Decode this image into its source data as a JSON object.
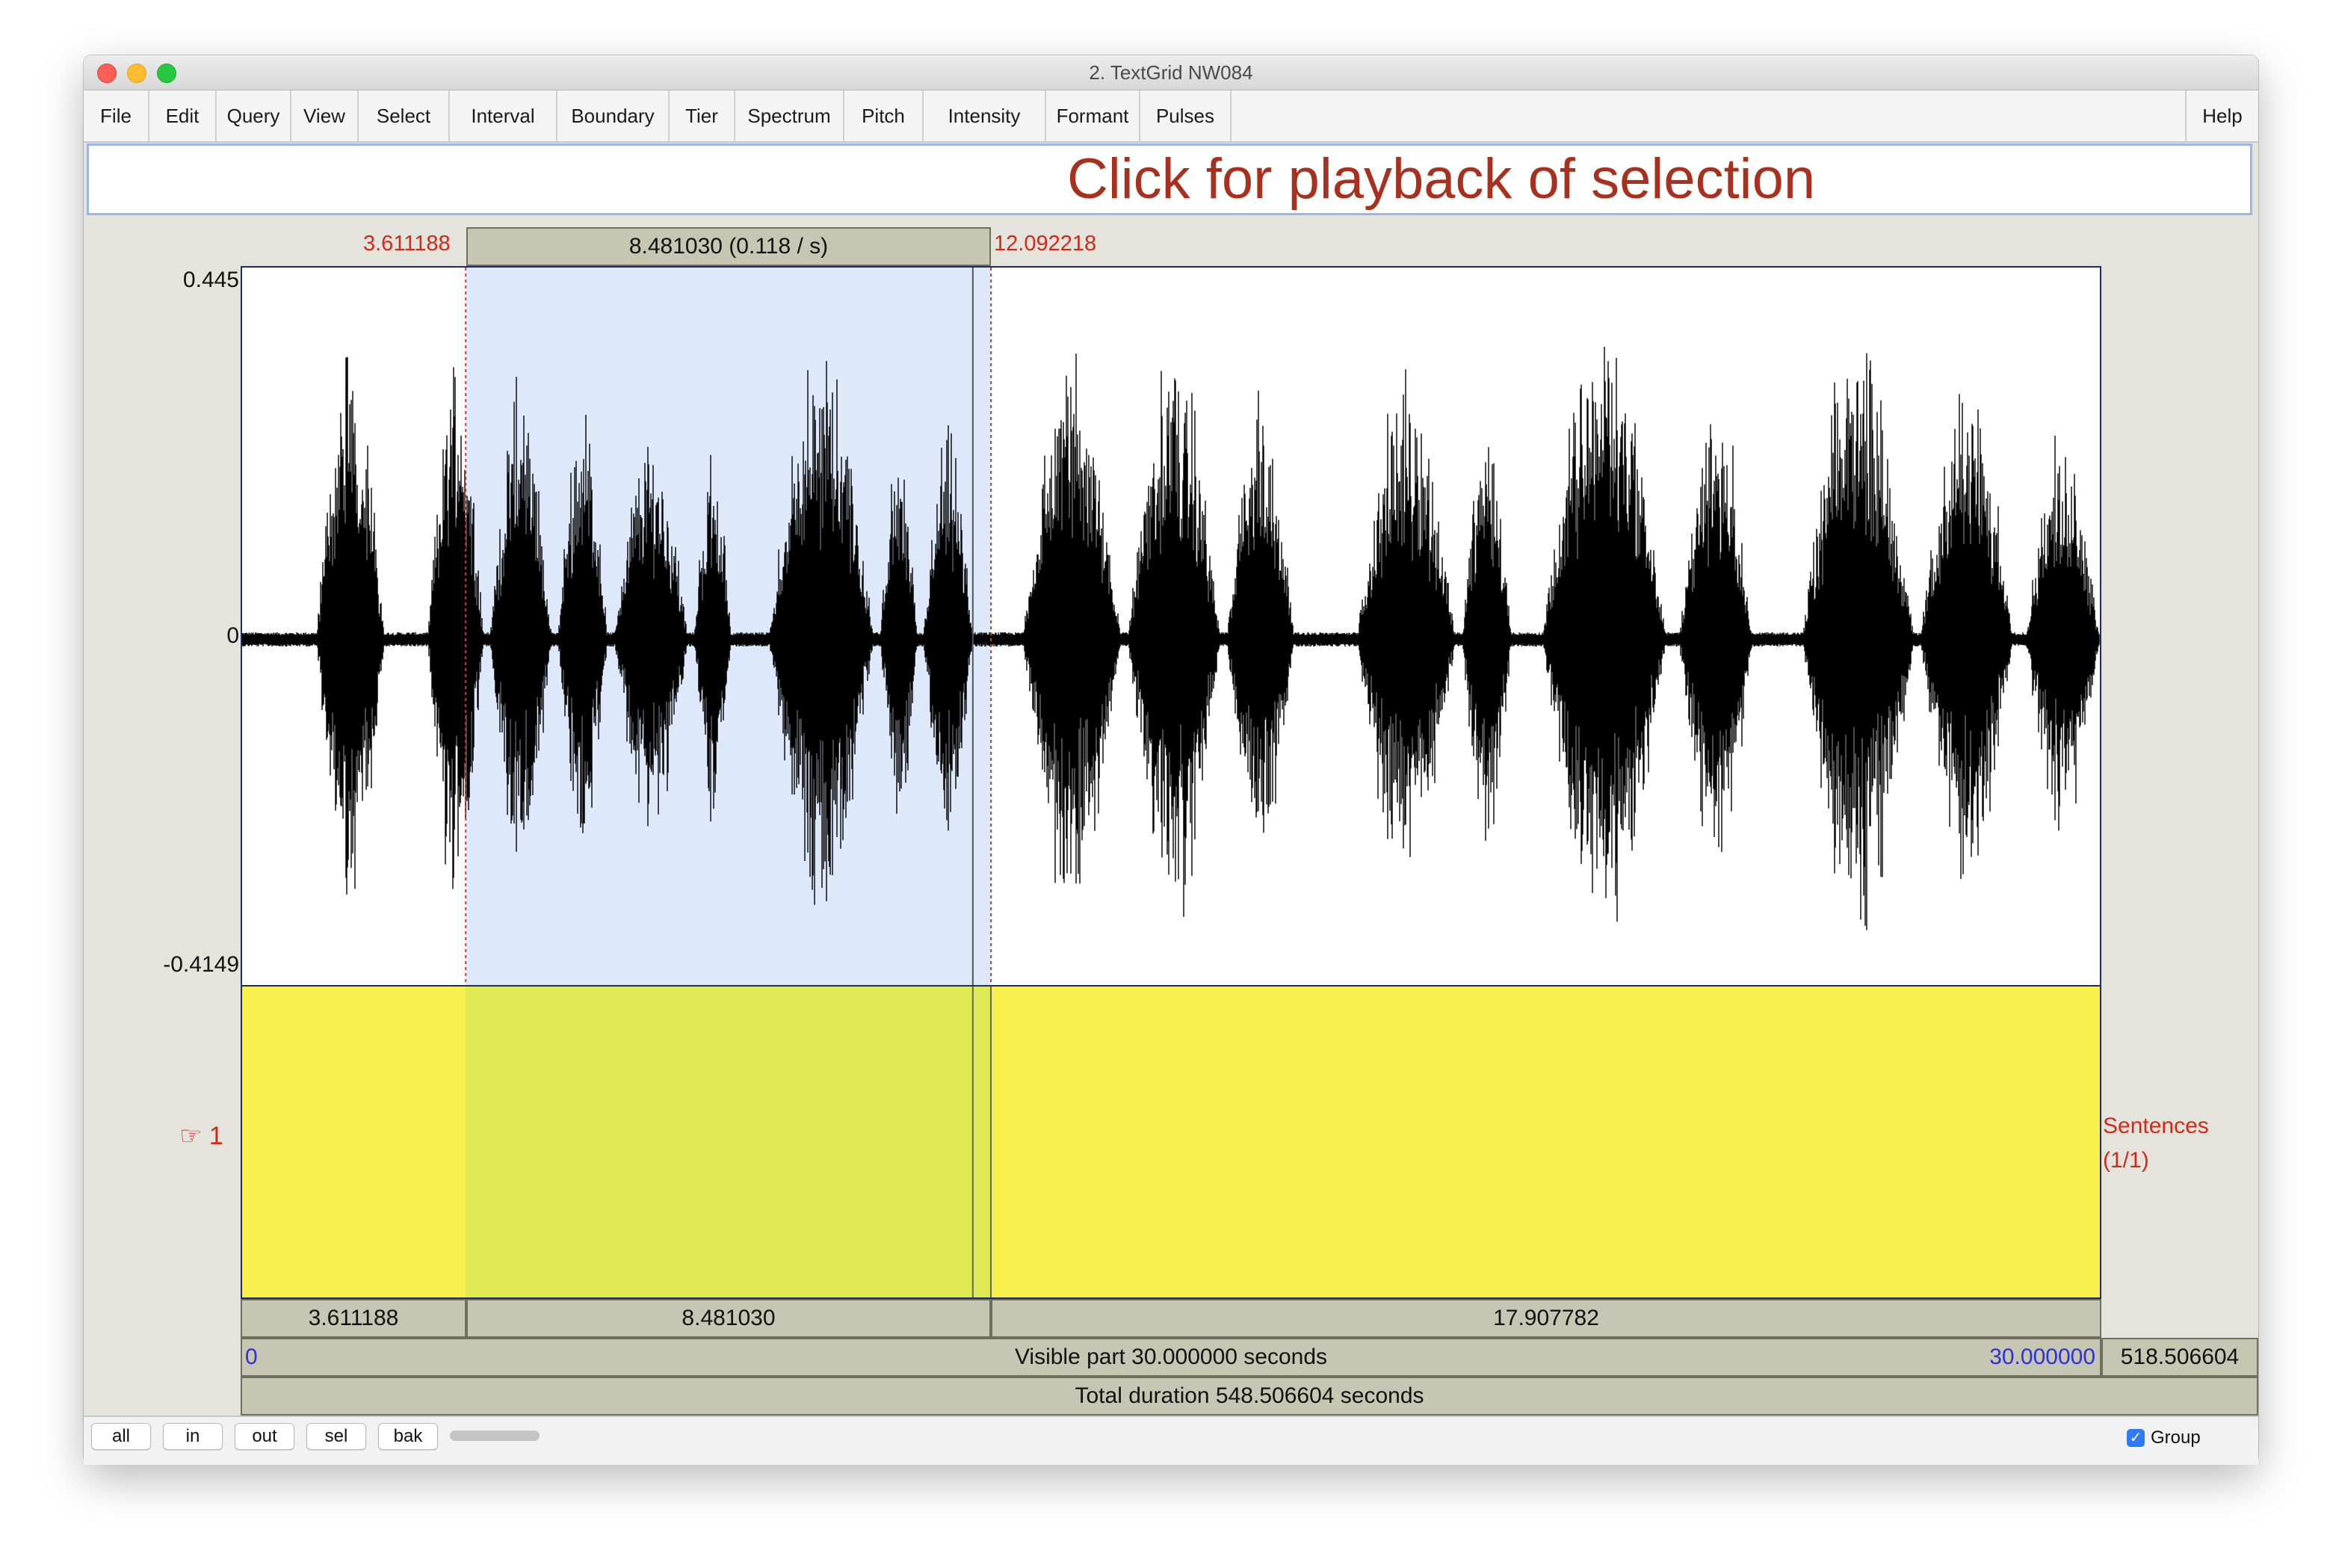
{
  "window": {
    "title": "2. TextGrid NW084"
  },
  "menu": [
    "File",
    "Edit",
    "Query",
    "View",
    "Select",
    "Interval",
    "Boundary",
    "Tier",
    "Spectrum",
    "Pitch",
    "Intensity",
    "Formant",
    "Pulses"
  ],
  "menu_help": "Help",
  "annotation": {
    "text": "Click for playback of selection",
    "color": "#a8301e"
  },
  "selection": {
    "start_label": "3.611188",
    "end_label": "12.092218",
    "duration_label": "8.481030 (0.118 / s)",
    "start_time": 3.611188,
    "end_time": 12.092218
  },
  "cursor_time": 11.8,
  "waveform": {
    "y_max": "0.445",
    "y_zero": "0",
    "y_min": "-0.4149"
  },
  "tier": {
    "number": "☞ 1",
    "name": "Sentences",
    "count": "(1/1)"
  },
  "segments": [
    "3.611188",
    "8.481030",
    "17.907782"
  ],
  "visible_part": {
    "text": "Visible part 30.000000 seconds",
    "start": "0",
    "end": "30.000000",
    "after": "518.506604"
  },
  "total_duration": "Total duration 548.506604 seconds",
  "view": {
    "start": 0,
    "end": 30
  },
  "zoom_buttons": [
    "all",
    "in",
    "out",
    "sel",
    "bak"
  ],
  "group": {
    "label": "Group",
    "checked": true
  },
  "colors": {
    "tier_fill": "#f7f04d",
    "selection_wave": "#dde9fa",
    "selection_tier": "#dee953",
    "time_label": "#cf2a1a",
    "blue_time": "#2c32d8"
  }
}
